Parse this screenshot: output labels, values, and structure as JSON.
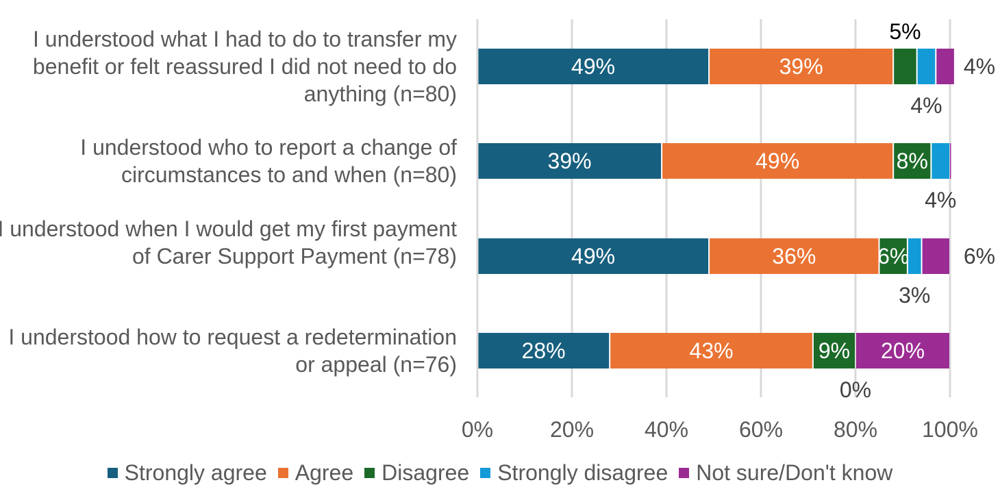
{
  "chart_data": {
    "type": "bar",
    "orientation": "horizontal",
    "stacked": true,
    "categories": [
      "I understood what I had to do to transfer my benefit or felt reassured I did not need to do anything (n=80)",
      "I understood who to report a change of circumstances to and when (n=80)",
      "I understood when I would get my first payment of Carer Support Payment (n=78)",
      "I understood how to request a redetermination or appeal (n=76)"
    ],
    "series": [
      {
        "name": "Strongly agree",
        "color": "#175f7e",
        "values": [
          49,
          39,
          49,
          28
        ],
        "label_pos": [
          "inside",
          "inside",
          "inside",
          "inside"
        ]
      },
      {
        "name": "Agree",
        "color": "#ea7333",
        "values": [
          39,
          49,
          36,
          43
        ],
        "label_pos": [
          "inside",
          "inside",
          "inside",
          "inside"
        ]
      },
      {
        "name": "Disagree",
        "color": "#1b6a28",
        "values": [
          5,
          8,
          6,
          9
        ],
        "label_pos": [
          "above",
          "inside",
          "inside",
          "inside"
        ]
      },
      {
        "name": "Strongly disagree",
        "color": "#129bd6",
        "values": [
          4,
          4,
          3,
          0
        ],
        "label_pos": [
          "below",
          "below",
          "below",
          "below"
        ]
      },
      {
        "name": "Not sure/Don't know",
        "color": "#9b2c93",
        "values": [
          4,
          0,
          6,
          20
        ],
        "label_pos": [
          "right",
          "none",
          "right",
          "inside"
        ]
      }
    ],
    "xlim": [
      0,
      100
    ],
    "xticks": [
      "0%",
      "20%",
      "40%",
      "60%",
      "80%",
      "100%"
    ],
    "grid": true,
    "legend": "bottom"
  }
}
